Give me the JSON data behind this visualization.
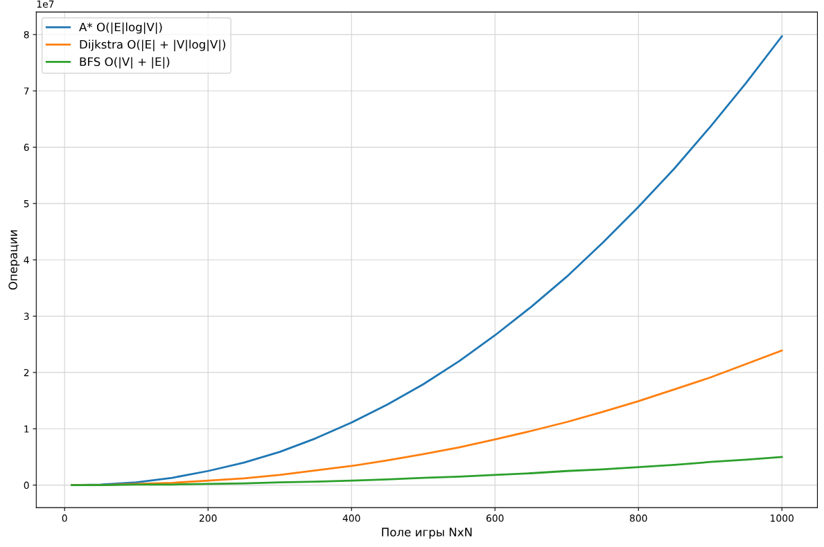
{
  "chart_data": {
    "type": "line",
    "xlabel": "Поле игры NxN",
    "ylabel": "Операции",
    "annotations": [
      "1e7"
    ],
    "x": [
      10,
      50,
      100,
      150,
      200,
      250,
      300,
      350,
      400,
      450,
      500,
      550,
      600,
      650,
      700,
      750,
      800,
      850,
      900,
      950,
      1000
    ],
    "series": [
      {
        "name": "A* O(|E|log|V|)",
        "color": "#1f77b4",
        "values": [
          0,
          0.01,
          0.05,
          0.13,
          0.25,
          0.4,
          0.59,
          0.83,
          1.11,
          1.43,
          1.79,
          2.2,
          2.66,
          3.16,
          3.7,
          4.3,
          4.94,
          5.62,
          6.36,
          7.14,
          7.97
        ]
      },
      {
        "name": "Dijkstra O(|E| + |V|log|V|)",
        "color": "#ff7f0e",
        "values": [
          0,
          0,
          0.02,
          0.04,
          0.08,
          0.12,
          0.18,
          0.26,
          0.34,
          0.44,
          0.55,
          0.67,
          0.81,
          0.96,
          1.12,
          1.3,
          1.49,
          1.7,
          1.91,
          2.15,
          2.39
        ]
      },
      {
        "name": "BFS O(|V| + |E|)",
        "color": "#2ca02c",
        "values": [
          0,
          0,
          0.01,
          0.01,
          0.02,
          0.03,
          0.05,
          0.06,
          0.08,
          0.1,
          0.13,
          0.15,
          0.18,
          0.21,
          0.25,
          0.28,
          0.32,
          0.36,
          0.41,
          0.45,
          0.5
        ]
      }
    ],
    "xlim": [
      -39.5,
      1049.5
    ],
    "xticks": [
      0,
      200,
      400,
      600,
      800,
      1000
    ],
    "ylim": [
      -0.4,
      8.4
    ],
    "yticks": [
      0,
      1,
      2,
      3,
      4,
      5,
      6,
      7,
      8
    ],
    "grid": true,
    "legend": "top left",
    "marker": "none",
    "line_style": "solid"
  }
}
